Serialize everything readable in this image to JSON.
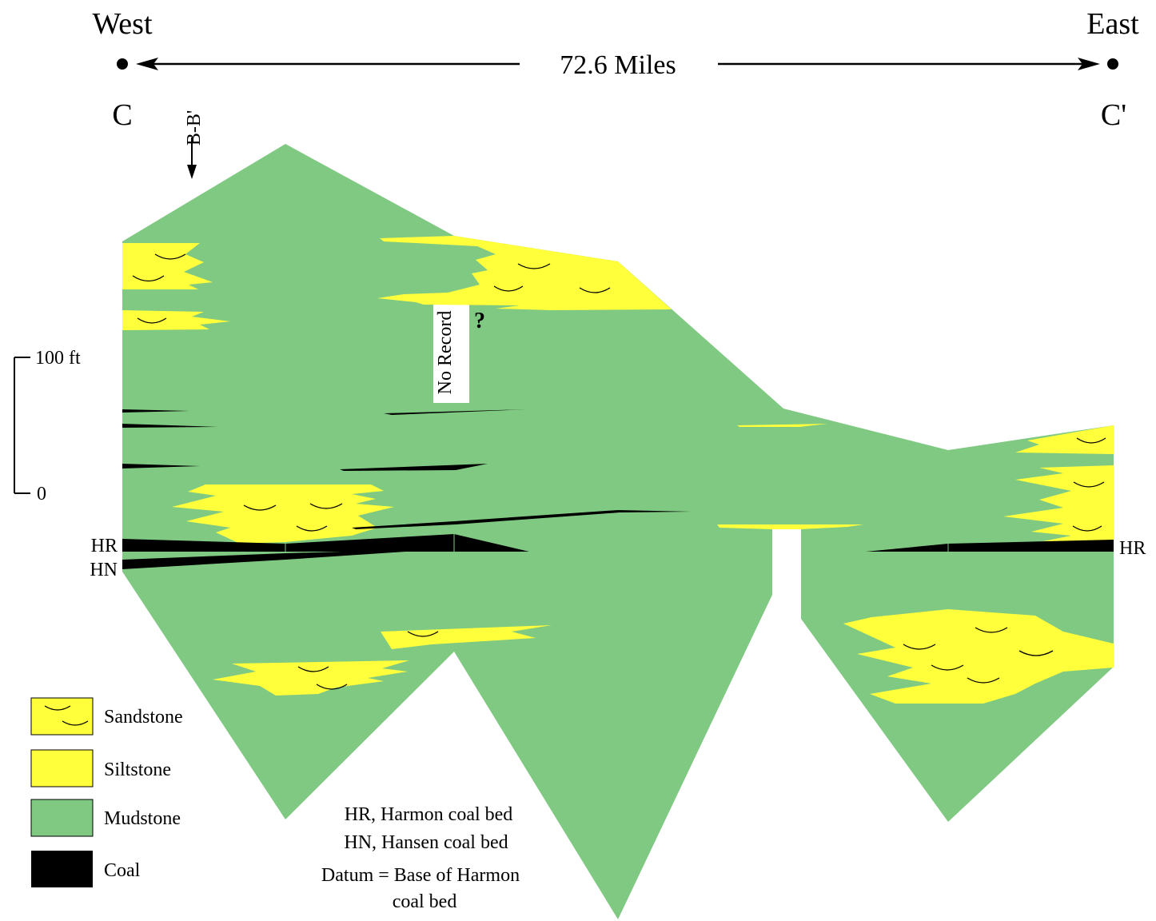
{
  "header": {
    "west": "West",
    "east": "East",
    "distance": "72.6 Miles",
    "start_point": "C",
    "end_point": "C'",
    "tie_line": "B-B'"
  },
  "scale_bar": {
    "top_label": "100 ft",
    "bottom_label": "0"
  },
  "annotations": {
    "no_record": "No Record",
    "question": "?"
  },
  "beds": {
    "hr_left": "HR",
    "hn_left": "HN",
    "hr_right": "HR"
  },
  "legend": {
    "items": [
      {
        "label": "Sandstone",
        "icon": "sandstone-swatch-icon",
        "color": "#ffff3c"
      },
      {
        "label": "Siltstone",
        "icon": "siltstone-swatch-icon",
        "color": "#ffff3c"
      },
      {
        "label": "Mudstone",
        "icon": "mudstone-swatch-icon",
        "color": "#80c982"
      },
      {
        "label": "Coal",
        "icon": "coal-swatch-icon",
        "color": "#000000"
      }
    ]
  },
  "notes": {
    "line1": "HR, Harmon coal bed",
    "line2": "HN, Hansen coal bed",
    "line3": "Datum = Base of Harmon",
    "line4": "coal bed"
  }
}
